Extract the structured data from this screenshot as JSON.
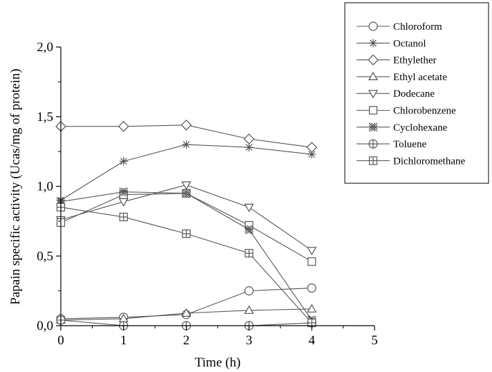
{
  "chart_data": {
    "type": "line",
    "xlabel": "Time (h)",
    "ylabel": "Papain specific activity (Ucas/mg of protein)",
    "xlim": [
      0,
      5
    ],
    "ylim": [
      0,
      2.0
    ],
    "x_ticks": [
      "0",
      "1",
      "2",
      "3",
      "4",
      "5"
    ],
    "y_ticks": [
      "0,0",
      "0,5",
      "1,0",
      "1,5",
      "2,0"
    ],
    "grid": false,
    "legend_position": "top-right",
    "line_color": "#555555",
    "series": [
      {
        "name": "Chloroform",
        "marker": "circle",
        "x": [
          0,
          1,
          2,
          3,
          4
        ],
        "y": [
          0.05,
          0.06,
          0.08,
          0.25,
          0.27
        ]
      },
      {
        "name": "Octanol",
        "marker": "asterisk",
        "x": [
          0,
          1,
          2,
          3,
          4
        ],
        "y": [
          0.9,
          1.18,
          1.3,
          1.28,
          1.23
        ]
      },
      {
        "name": "Ethylether",
        "marker": "diamond",
        "x": [
          0,
          1,
          2,
          3,
          4
        ],
        "y": [
          1.43,
          1.43,
          1.44,
          1.34,
          1.28
        ]
      },
      {
        "name": "Ethyl acetate",
        "marker": "triangle-up",
        "x": [
          0,
          1,
          2,
          3,
          4
        ],
        "y": [
          0.04,
          0.05,
          0.09,
          0.11,
          0.12
        ]
      },
      {
        "name": "Dodecane",
        "marker": "triangle-down",
        "x": [
          0,
          1,
          2,
          3,
          4
        ],
        "y": [
          0.76,
          0.89,
          1.01,
          0.85,
          0.54
        ]
      },
      {
        "name": "Chlorobenzene",
        "marker": "square",
        "x": [
          0,
          1,
          2,
          3,
          4
        ],
        "y": [
          0.74,
          0.94,
          0.95,
          0.72,
          0.46
        ]
      },
      {
        "name": "Cyclohexane",
        "marker": "circle-x",
        "x": [
          0,
          1,
          2,
          3,
          4
        ],
        "y": [
          0.89,
          0.96,
          0.95,
          0.69,
          0.04
        ]
      },
      {
        "name": "Toluene",
        "marker": "circle-plus",
        "x": [
          0,
          1,
          2,
          3,
          4
        ],
        "y": [
          0.04,
          0.0,
          0.0,
          0.0,
          0.02
        ]
      },
      {
        "name": "Dichloromethane",
        "marker": "square-plus",
        "x": [
          0,
          1,
          2,
          3,
          4
        ],
        "y": [
          0.85,
          0.78,
          0.66,
          0.52,
          0.02
        ]
      }
    ]
  }
}
